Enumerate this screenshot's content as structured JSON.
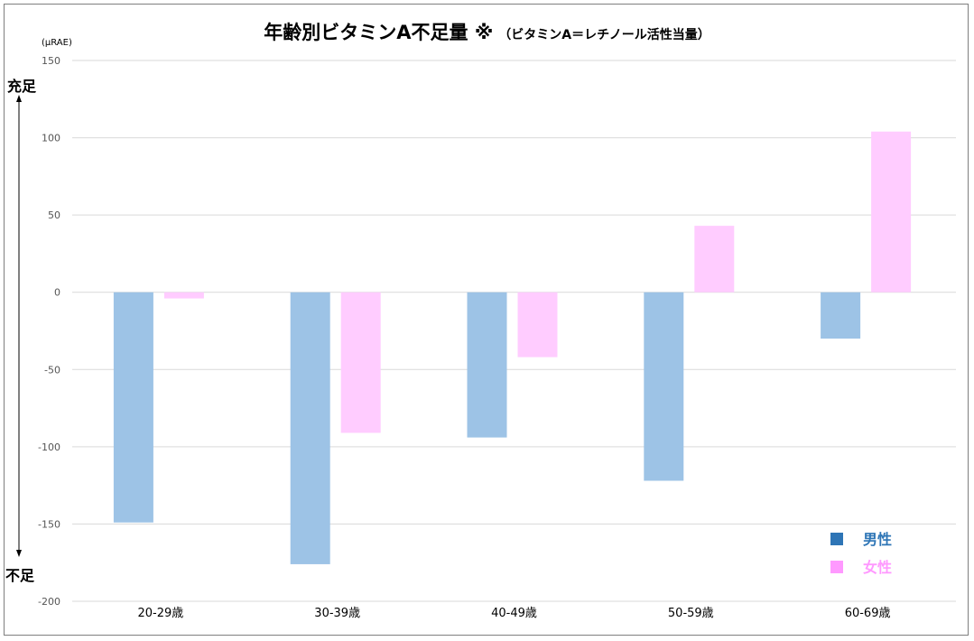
{
  "chart_data": {
    "type": "bar",
    "title": "年齢別ビタミンA不足量 ※",
    "subtitle": "（ビタミンA＝レチノール活性当量）",
    "unit_label": "(μRAE)",
    "side_label_top": "充足",
    "side_label_bottom": "不足",
    "categories": [
      "20-29歳",
      "30-39歳",
      "40-49歳",
      "50-59歳",
      "60-69歳"
    ],
    "series": [
      {
        "name": "男性",
        "color": "#9dc3e6",
        "values": [
          -149,
          -176,
          -94,
          -122,
          -30
        ]
      },
      {
        "name": "女性",
        "color": "#ffccff",
        "values": [
          -4,
          -91,
          -42,
          43,
          104
        ]
      }
    ],
    "legend_colors": {
      "男性": "#2e75b6",
      "女性": "#ff99ff"
    },
    "legend_text_colors": {
      "男性": "#2e75b6",
      "女性": "#ff99ff"
    },
    "ylim": [
      -200,
      150
    ],
    "yticks": [
      150,
      100,
      50,
      0,
      -50,
      -100,
      -150,
      -200
    ],
    "grid": true,
    "legend_position": "bottom-right"
  }
}
